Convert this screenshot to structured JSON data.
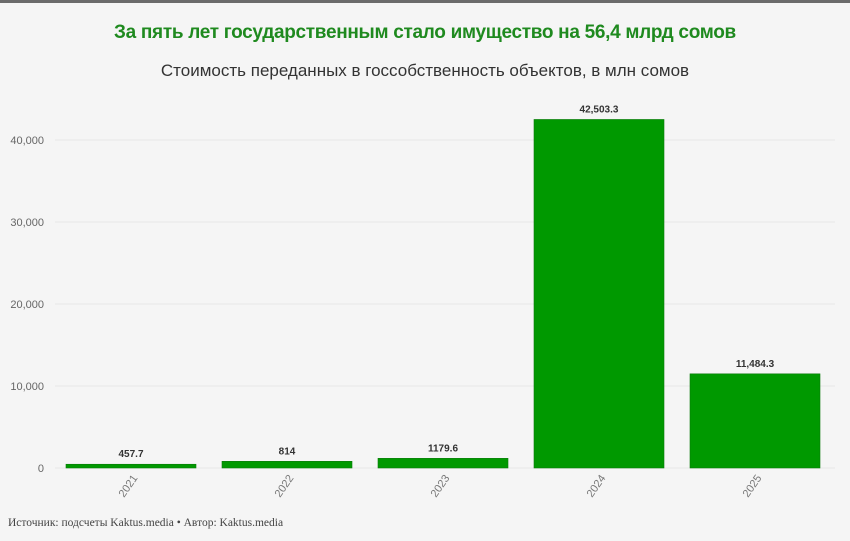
{
  "title": "За пять лет государственным стало имущество на 56,4 млрд сомов",
  "subtitle": "Стоимость переданных в госсобственность объектов, в млн сомов",
  "footer": "Источник: подсчеты Kaktus.media • Автор: Kaktus.media",
  "colors": {
    "bar": "#009900",
    "title": "#1f8a1f"
  },
  "chart_data": {
    "type": "bar",
    "title": "За пять лет государственным стало имущество на 56,4 млрд сомов",
    "subtitle": "Стоимость переданных в госсобственность объектов, в млн сомов",
    "categories": [
      "2021",
      "2022",
      "2023",
      "2024",
      "2025"
    ],
    "values": [
      457.7,
      814,
      1179.6,
      42503.3,
      11484.3
    ],
    "data_labels": [
      "457.7",
      "814",
      "1179.6",
      "42,503.3",
      "11,484.3"
    ],
    "yticks": [
      0,
      10000,
      20000,
      30000,
      40000
    ],
    "ytick_labels": [
      "0",
      "10,000",
      "20,000",
      "30,000",
      "40,000"
    ],
    "ylim": [
      0,
      44000
    ],
    "xlabel": "",
    "ylabel": "",
    "grid": true,
    "legend": "none"
  }
}
